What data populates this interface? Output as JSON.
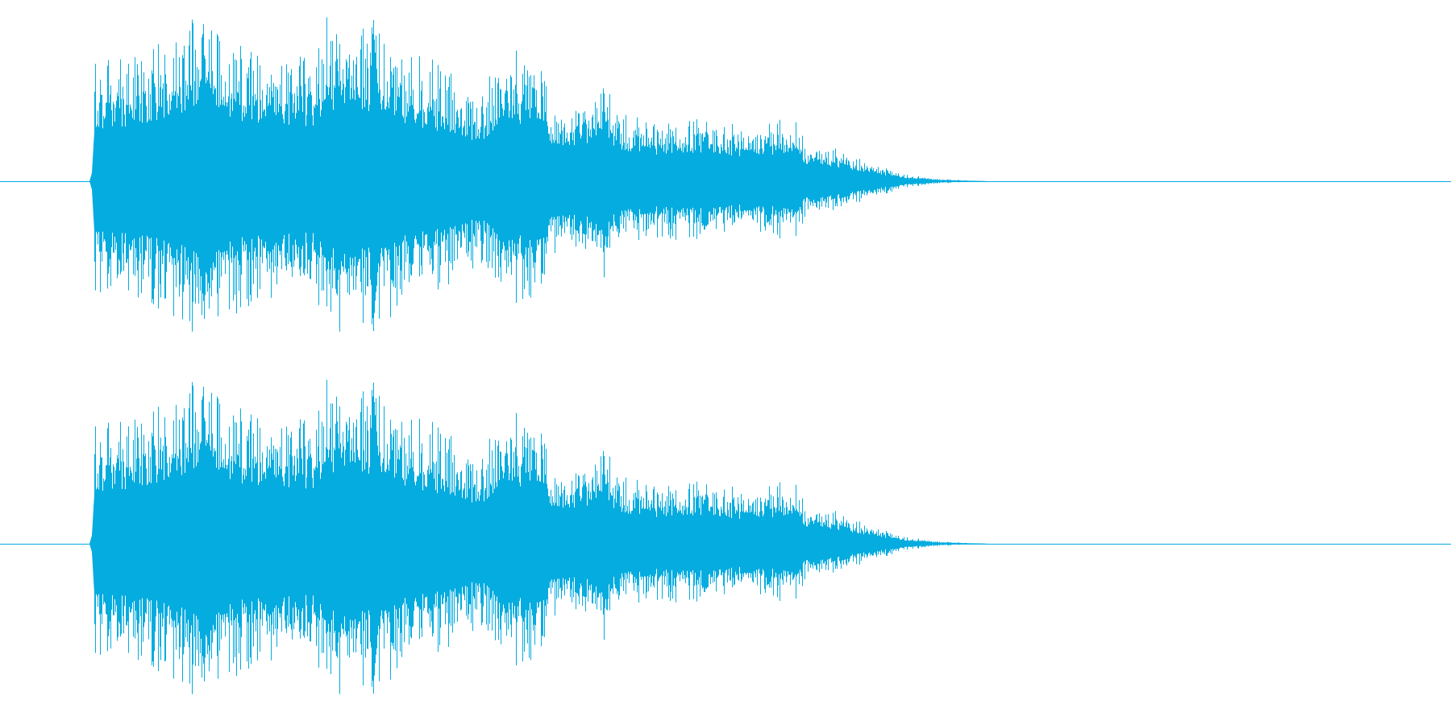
{
  "waveform": {
    "color": "#05acdf",
    "background": "#ffffff",
    "channels": [
      {
        "channel": "left"
      },
      {
        "channel": "right"
      }
    ],
    "envelope": [
      [
        0.0,
        0.0
      ],
      [
        0.063,
        0.0
      ],
      [
        0.065,
        0.72
      ],
      [
        0.08,
        0.75
      ],
      [
        0.1,
        0.76
      ],
      [
        0.11,
        0.8
      ],
      [
        0.125,
        0.92
      ],
      [
        0.135,
        1.0
      ],
      [
        0.15,
        0.98
      ],
      [
        0.165,
        0.8
      ],
      [
        0.19,
        0.78
      ],
      [
        0.215,
        0.72
      ],
      [
        0.225,
        0.96
      ],
      [
        0.24,
        1.0
      ],
      [
        0.26,
        0.95
      ],
      [
        0.275,
        0.78
      ],
      [
        0.3,
        0.7
      ],
      [
        0.32,
        0.62
      ],
      [
        0.33,
        0.5
      ],
      [
        0.345,
        0.76
      ],
      [
        0.365,
        0.8
      ],
      [
        0.38,
        0.52
      ],
      [
        0.405,
        0.45
      ],
      [
        0.415,
        0.65
      ],
      [
        0.425,
        0.4
      ],
      [
        0.445,
        0.36
      ],
      [
        0.47,
        0.38
      ],
      [
        0.49,
        0.35
      ],
      [
        0.52,
        0.32
      ],
      [
        0.545,
        0.4
      ],
      [
        0.555,
        0.24
      ],
      [
        0.575,
        0.2
      ],
      [
        0.59,
        0.14
      ],
      [
        0.61,
        0.08
      ],
      [
        0.625,
        0.04
      ],
      [
        0.645,
        0.015
      ],
      [
        0.665,
        0.006
      ],
      [
        0.682,
        0.0
      ],
      [
        1.0,
        0.0
      ]
    ]
  }
}
